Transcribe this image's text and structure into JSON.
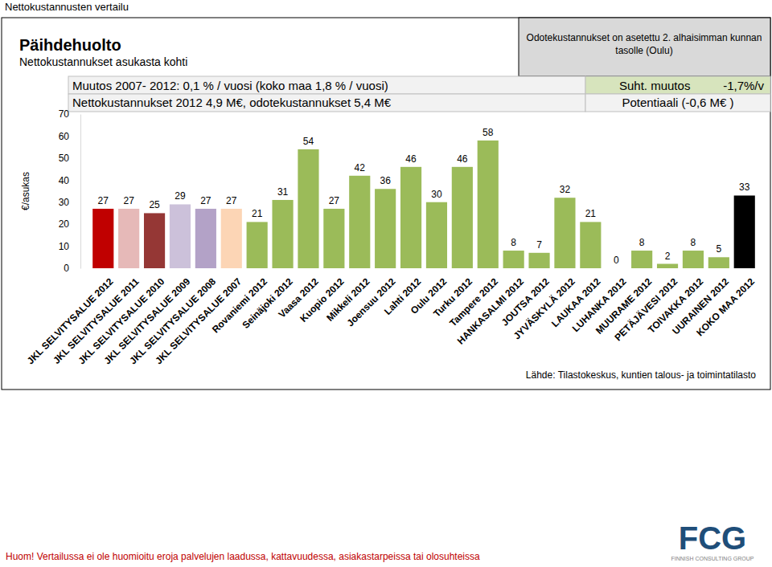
{
  "chart_data": {
    "type": "bar",
    "page_title": "Nettokustannusten vertailu",
    "title": "Päihdehuolto",
    "subtitle": "Nettokustannukset asukasta kohti",
    "y_label": "€/asukas",
    "annotations": {
      "expected_cost_note": "Odotekustannukset on asetettu 2. alhaisimman kunnan tasolle (Oulu)",
      "change": "Muutos 2007- 2012: 0,1 % / vuosi (koko maa 1,8 % / vuosi)",
      "costs": "Nettokustannukset 2012 4,9 M€, odotekustannukset 5,4 M€",
      "relative_change_label": "Suht. muutos",
      "relative_change_value": "-1,7%/v",
      "potential": "Potentiaali (-0,6 M€ )",
      "source": "Lähde: Tilastokeskus, kuntien talous- ja toimintatilasto",
      "footnote": "Huom! Vertailussa ei ole huomioitu eroja palvelujen laadussa, kattavuudessa, asiakastarpeissa tai olosuhteissa",
      "logo": "FCG",
      "logo_subtitle": "FINNISH CONSULTING GROUP"
    },
    "categories": [
      "JKL SELVITYSALUE 2012",
      "JKL SELVITYSALUE 2011",
      "JKL SELVITYSALUE 2010",
      "JKL SELVITYSALUE 2009",
      "JKL SELVITYSALUE 2008",
      "JKL SELVITYSALUE 2007",
      "Rovaniemi 2012",
      "Seinäjoki 2012",
      "Vaasa 2012",
      "Kuopio 2012",
      "Mikkeli 2012",
      "Joensuu 2012",
      "Lahti 2012",
      "Oulu 2012",
      "Turku 2012",
      "Tampere 2012",
      "HANKASALMI 2012",
      "JOUTSA 2012",
      "JYVÄSKYLÄ 2012",
      "LAUKAA 2012",
      "LUHANKA 2012",
      "MUURAME 2012",
      "PETÄJÄVESI 2012",
      "TOIVAKKA 2012",
      "UURAINEN 2012",
      "KOKO MAA 2012"
    ],
    "values": [
      27,
      27,
      25,
      29,
      27,
      27,
      21,
      31,
      54,
      27,
      42,
      36,
      46,
      30,
      46,
      58,
      8,
      7,
      32,
      21,
      0,
      8,
      2,
      8,
      5,
      33
    ],
    "colors": [
      "#c00000",
      "#e6b9b8",
      "#953735",
      "#ccc1da",
      "#b3a2c7",
      "#fcd5b5",
      "#9bbb59",
      "#9bbb59",
      "#9bbb59",
      "#9bbb59",
      "#9bbb59",
      "#9bbb59",
      "#9bbb59",
      "#9bbb59",
      "#9bbb59",
      "#9bbb59",
      "#9bbb59",
      "#9bbb59",
      "#9bbb59",
      "#9bbb59",
      "#9bbb59",
      "#9bbb59",
      "#9bbb59",
      "#9bbb59",
      "#9bbb59",
      "#000000"
    ],
    "ylim": [
      0,
      70
    ],
    "yticks": [
      0,
      10,
      20,
      30,
      40,
      50,
      60,
      70
    ],
    "data_labels": true,
    "grid": false
  }
}
